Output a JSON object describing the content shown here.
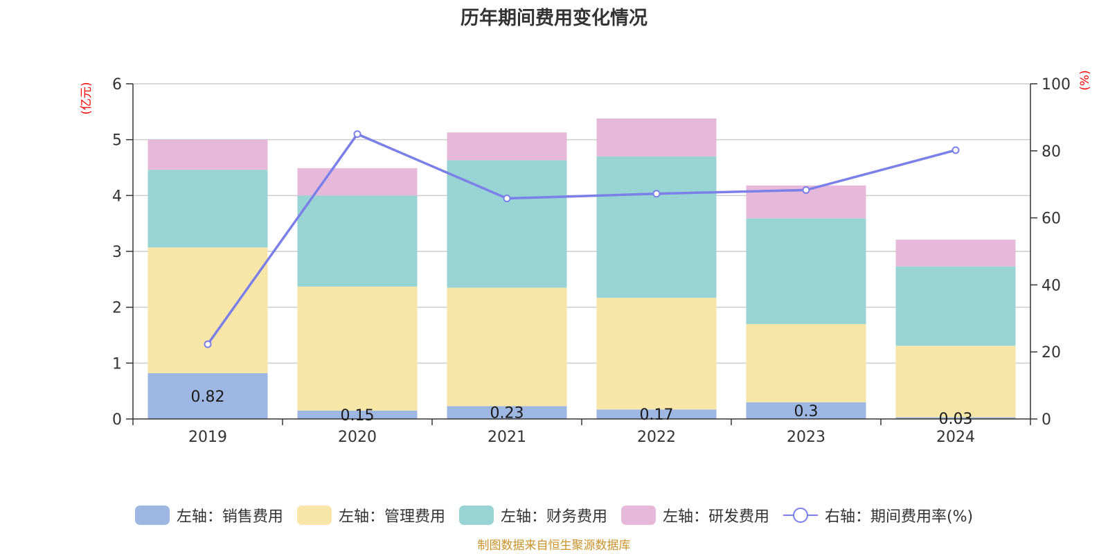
{
  "title": "历年期间费用变化情况",
  "footer": "制图数据来自恒生聚源数据库",
  "axis_units": {
    "left": "(亿元)",
    "right": "(%)"
  },
  "colors": {
    "sales": "#9db7e2",
    "admin": "#f7e6a8",
    "finance": "#98d4d4",
    "rnd": "#e6b9da",
    "rate": "#7b7fe8",
    "unit_label": "#ff0000",
    "axis": "#333333",
    "grid": "#cccccc"
  },
  "legend": [
    {
      "key": "sales",
      "label": "左轴：销售费用"
    },
    {
      "key": "admin",
      "label": "左轴：管理费用"
    },
    {
      "key": "finance",
      "label": "左轴：财务费用"
    },
    {
      "key": "rnd",
      "label": "左轴：研发费用"
    },
    {
      "key": "rate",
      "label": "右轴：期间费用率(%)"
    }
  ],
  "chart_data": {
    "type": "bar",
    "stacked": true,
    "categories": [
      "2019",
      "2020",
      "2021",
      "2022",
      "2023",
      "2024"
    ],
    "series": [
      {
        "name": "销售费用",
        "axis": "left",
        "values": [
          0.82,
          0.15,
          0.23,
          0.17,
          0.3,
          0.03
        ],
        "data_labels": [
          "0.82",
          "0.15",
          "0.23",
          "0.17",
          "0.3",
          "0.03"
        ]
      },
      {
        "name": "管理费用",
        "axis": "left",
        "values": [
          2.25,
          2.22,
          2.12,
          2.0,
          1.4,
          1.28
        ]
      },
      {
        "name": "财务费用",
        "axis": "left",
        "values": [
          1.39,
          1.63,
          2.28,
          2.53,
          1.89,
          1.42
        ]
      },
      {
        "name": "研发费用",
        "axis": "left",
        "values": [
          0.54,
          0.49,
          0.5,
          0.68,
          0.59,
          0.48
        ]
      },
      {
        "name": "期间费用率(%)",
        "axis": "right",
        "type": "line",
        "values": [
          22.3,
          85,
          65.8,
          67.2,
          68.3,
          80.2
        ]
      }
    ],
    "left_axis": {
      "ylim": [
        0,
        6
      ],
      "ticks": [
        0,
        1,
        2,
        3,
        4,
        5,
        6
      ]
    },
    "right_axis": {
      "ylim": [
        0,
        100
      ],
      "ticks": [
        0,
        20,
        40,
        60,
        80,
        100
      ]
    },
    "grid": true,
    "legend_position": "bottom"
  }
}
